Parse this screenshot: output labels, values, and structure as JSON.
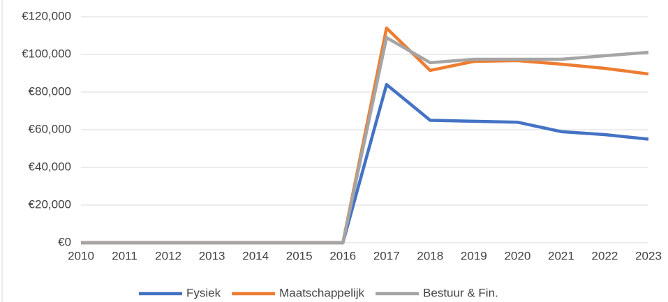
{
  "chart_data": {
    "type": "line",
    "x": [
      2010,
      2011,
      2012,
      2013,
      2014,
      2015,
      2016,
      2017,
      2018,
      2019,
      2020,
      2021,
      2022,
      2023
    ],
    "xlim": [
      2010,
      2023
    ],
    "xticks": [
      2010,
      2011,
      2012,
      2013,
      2014,
      2015,
      2016,
      2017,
      2018,
      2019,
      2020,
      2021,
      2022,
      2023
    ],
    "ylim": [
      0,
      120000
    ],
    "yticks": [
      {
        "value": 0,
        "label": "€0"
      },
      {
        "value": 20000,
        "label": "€20,000"
      },
      {
        "value": 40000,
        "label": "€40,000"
      },
      {
        "value": 60000,
        "label": "€60,000"
      },
      {
        "value": 80000,
        "label": "€80,000"
      },
      {
        "value": 100000,
        "label": "€100,000"
      },
      {
        "value": 120000,
        "label": "€120,000"
      }
    ],
    "grid": true,
    "legend": "bottom",
    "series": [
      {
        "name": "Fysiek",
        "color": "#4472c4",
        "values": [
          0,
          0,
          0,
          0,
          0,
          0,
          0,
          84000,
          65000,
          64500,
          64000,
          59000,
          57400,
          55000
        ]
      },
      {
        "name": "Maatschappelijk",
        "color": "#ed7d31",
        "values": [
          0,
          0,
          0,
          0,
          0,
          0,
          0,
          114000,
          91500,
          96300,
          96700,
          94800,
          92600,
          89600
        ]
      },
      {
        "name": "Bestuur & Fin.",
        "color": "#a5a5a5",
        "values": [
          0,
          0,
          0,
          0,
          0,
          0,
          0,
          108900,
          95600,
          97400,
          97400,
          97400,
          99300,
          101100
        ]
      }
    ]
  }
}
